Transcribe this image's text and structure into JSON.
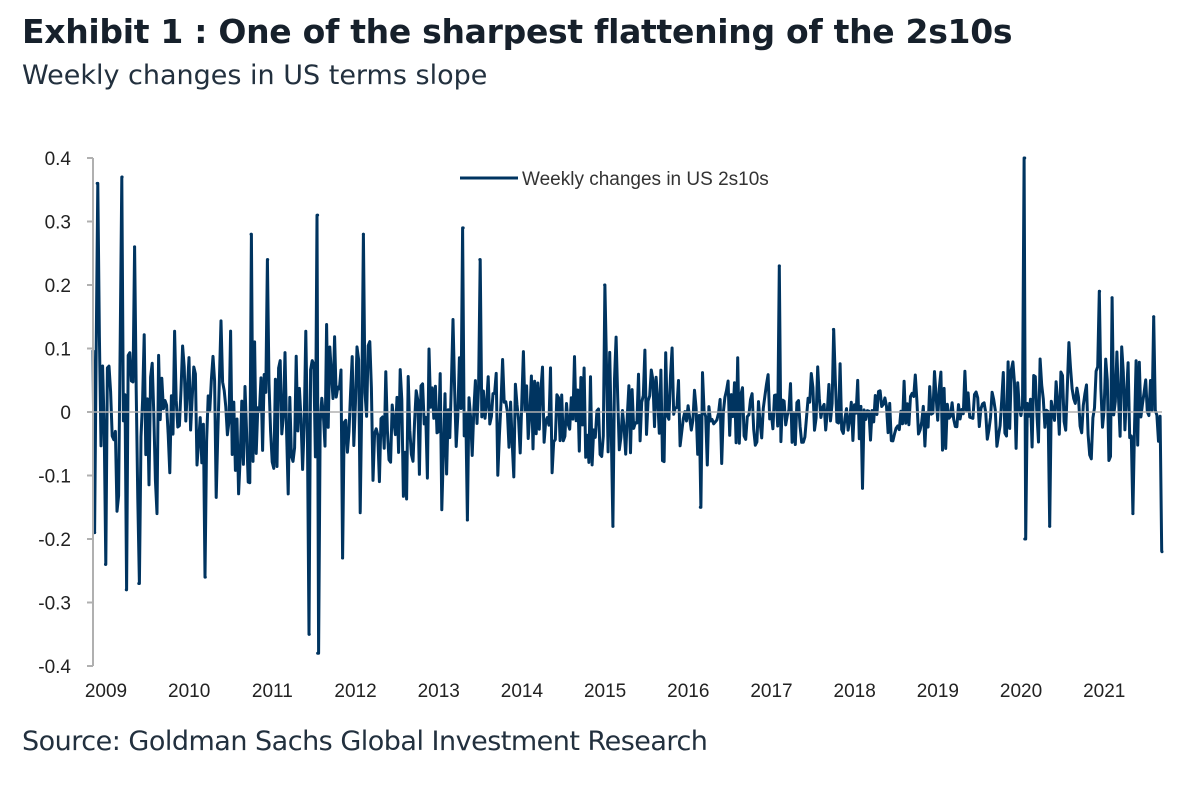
{
  "header": {
    "title": "Exhibit 1 : One of the sharpest flattening of the 2s10s",
    "subtitle": "Weekly changes in US terms slope"
  },
  "footer": {
    "source": "Source: Goldman Sachs Global Investment Research"
  },
  "chart_data": {
    "type": "line",
    "title": "Exhibit 1 : One of the sharpest flattening of the 2s10s",
    "subtitle": "Weekly changes in US terms slope",
    "xlabel": "",
    "ylabel": "",
    "ylim": [
      -0.4,
      0.4
    ],
    "xlim": [
      2009.0,
      2021.85
    ],
    "y_ticks": [
      "0.4",
      "0.3",
      "0.2",
      "0.1",
      "0",
      "-0.1",
      "-0.2",
      "-0.3",
      "-0.4"
    ],
    "y_tick_values": [
      0.4,
      0.3,
      0.2,
      0.1,
      0,
      -0.1,
      -0.2,
      -0.3,
      -0.4
    ],
    "x_ticks": [
      "2009",
      "2010",
      "2011",
      "2012",
      "2013",
      "2014",
      "2015",
      "2016",
      "2017",
      "2018",
      "2019",
      "2020",
      "2021"
    ],
    "x_tick_values": [
      2009,
      2010,
      2011,
      2012,
      2013,
      2014,
      2015,
      2016,
      2017,
      2018,
      2019,
      2020,
      2021
    ],
    "grid": false,
    "legend": {
      "position": "top-center",
      "entries": [
        "Weekly changes in US 2s10s"
      ]
    },
    "series": [
      {
        "name": "Weekly changes in US 2s10s",
        "color": "#003460",
        "frequency": "weekly",
        "volatility_by_year": {
          "2009": 0.13,
          "2010": 0.085,
          "2011": 0.09,
          "2012": 0.085,
          "2013": 0.08,
          "2014": 0.06,
          "2015": 0.065,
          "2016": 0.045,
          "2017": 0.045,
          "2018": 0.04,
          "2019": 0.04,
          "2020": 0.06,
          "2021": 0.07
        },
        "notable_points": [
          {
            "x": 2009.05,
            "y": 0.36
          },
          {
            "x": 2009.02,
            "y": -0.19
          },
          {
            "x": 2009.15,
            "y": -0.24
          },
          {
            "x": 2009.35,
            "y": 0.37
          },
          {
            "x": 2009.4,
            "y": -0.28
          },
          {
            "x": 2009.5,
            "y": 0.26
          },
          {
            "x": 2009.55,
            "y": -0.27
          },
          {
            "x": 2010.35,
            "y": -0.26
          },
          {
            "x": 2010.9,
            "y": 0.28
          },
          {
            "x": 2011.1,
            "y": 0.24
          },
          {
            "x": 2011.7,
            "y": 0.31
          },
          {
            "x": 2011.6,
            "y": -0.35
          },
          {
            "x": 2011.7,
            "y": -0.38
          },
          {
            "x": 2012.25,
            "y": 0.28
          },
          {
            "x": 2012.0,
            "y": -0.23
          },
          {
            "x": 2013.45,
            "y": 0.29
          },
          {
            "x": 2013.65,
            "y": 0.24
          },
          {
            "x": 2013.5,
            "y": -0.17
          },
          {
            "x": 2015.15,
            "y": 0.2
          },
          {
            "x": 2015.25,
            "y": -0.18
          },
          {
            "x": 2016.3,
            "y": -0.15
          },
          {
            "x": 2017.25,
            "y": 0.23
          },
          {
            "x": 2017.9,
            "y": 0.13
          },
          {
            "x": 2018.25,
            "y": -0.12
          },
          {
            "x": 2020.2,
            "y": 0.4
          },
          {
            "x": 2020.2,
            "y": -0.2
          },
          {
            "x": 2020.5,
            "y": -0.18
          },
          {
            "x": 2021.1,
            "y": 0.19
          },
          {
            "x": 2021.25,
            "y": 0.18
          },
          {
            "x": 2021.5,
            "y": -0.16
          },
          {
            "x": 2021.75,
            "y": 0.15
          },
          {
            "x": 2021.85,
            "y": -0.22
          }
        ]
      }
    ]
  }
}
